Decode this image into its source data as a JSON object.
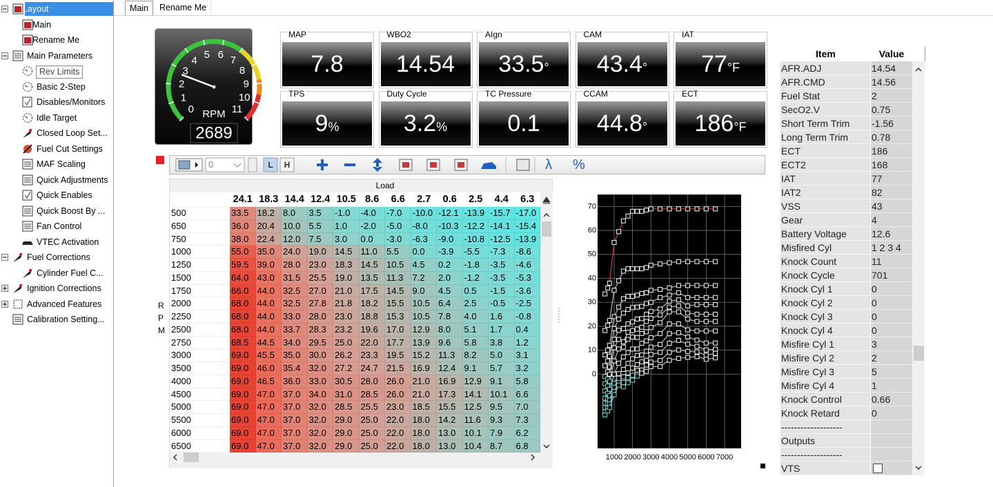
{
  "sidebar": [
    "Layout",
    "Main",
    "Rename Me",
    "Main Parameters",
    "Rev Limits",
    "Basic 2-Step",
    "Disables/Monitors",
    "Idle Target",
    "Closed Loop Set...",
    "Fuel Cut Settings",
    "MAF Scaling",
    "Quick Adjustments",
    "Quick Enables",
    "Quick Boost By ...",
    "Fan Control",
    "VTEC Activation",
    "Fuel Corrections",
    "Cylinder Fuel C...",
    "Ignition Corrections",
    "Advanced Features",
    "Calibration Setting..."
  ],
  "tabs": [
    "Main",
    "Rename Me"
  ],
  "rpm_gauge": {
    "label": "RPM",
    "ticks": [
      0,
      1,
      2,
      3,
      4,
      5,
      6,
      7,
      8,
      9,
      10,
      11
    ],
    "value": "2689"
  },
  "gauges": [
    {
      "label": "MAP",
      "value": "7.8"
    },
    {
      "label": "WBO2",
      "value": "14.54"
    },
    {
      "label": "AIgn",
      "value": "33.5",
      "unit": "°"
    },
    {
      "label": "CAM",
      "value": "43.4",
      "unit": "°"
    },
    {
      "label": "IAT",
      "value": "77",
      "unit": "°F"
    },
    {
      "label": "TPS",
      "value": "9",
      "unit": "%"
    },
    {
      "label": "Duty Cycle",
      "value": "3.2",
      "unit": "%"
    },
    {
      "label": "TC Pressure",
      "value": "0.1"
    },
    {
      "label": "CCAM",
      "value": "44.8",
      "unit": "°"
    },
    {
      "label": "ECT",
      "value": "186",
      "unit": "°F"
    }
  ],
  "toolbar": {
    "selector": "0",
    "buttons": [
      "L",
      "H"
    ],
    "symbols": [
      "λ",
      "%"
    ]
  },
  "table": {
    "axis_label": "Load",
    "row_axis_label": "RPM",
    "columns": [
      "24.1",
      "18.3",
      "14.4",
      "12.4",
      "10.5",
      "8.6",
      "6.6",
      "2.7",
      "0.6",
      "2.5",
      "4.4",
      "6.3"
    ],
    "rows": [
      {
        "rpm": "500",
        "cells": [
          "33.5",
          "18.2",
          "8.0",
          "3.5",
          "-1.0",
          "-4.0",
          "-7.0",
          "-10.0",
          "-12.1",
          "-13.9",
          "-15.7",
          "-17.0"
        ]
      },
      {
        "rpm": "650",
        "cells": [
          "36.0",
          "20.4",
          "10.0",
          "5.5",
          "1.0",
          "-2.0",
          "-5.0",
          "-8.0",
          "-10.3",
          "-12.2",
          "-14.1",
          "-15.4"
        ]
      },
      {
        "rpm": "750",
        "cells": [
          "38.0",
          "22.4",
          "12.0",
          "7.5",
          "3.0",
          "0.0",
          "-3.0",
          "-6.3",
          "-9.0",
          "-10.8",
          "-12.5",
          "-13.9"
        ]
      },
      {
        "rpm": "1000",
        "cells": [
          "55.0",
          "35.0",
          "24.0",
          "19.0",
          "14.5",
          "11.0",
          "5.5",
          "0.0",
          "-3.9",
          "-5.5",
          "-7.3",
          "-8.6"
        ]
      },
      {
        "rpm": "1250",
        "cells": [
          "59.5",
          "39.0",
          "28.0",
          "23.0",
          "18.3",
          "14.5",
          "10.5",
          "4.5",
          "0.2",
          "-1.8",
          "-3.5",
          "-4.6"
        ]
      },
      {
        "rpm": "1500",
        "cells": [
          "64.0",
          "43.0",
          "31.5",
          "25.5",
          "19.0",
          "13.5",
          "11.3",
          "7.2",
          "2.0",
          "-1.2",
          "-3.5",
          "-5.3"
        ]
      },
      {
        "rpm": "1750",
        "cells": [
          "66.0",
          "44.0",
          "32.5",
          "27.0",
          "21.0",
          "17.5",
          "14.5",
          "9.0",
          "4.5",
          "0.5",
          "-1.5",
          "-3.6"
        ]
      },
      {
        "rpm": "2000",
        "cells": [
          "68.0",
          "44.0",
          "32.5",
          "27.8",
          "21.8",
          "18.2",
          "15.5",
          "10.5",
          "6.4",
          "2.5",
          "-0.5",
          "-2.5"
        ]
      },
      {
        "rpm": "2250",
        "cells": [
          "68.0",
          "44.0",
          "33.0",
          "28.0",
          "23.0",
          "18.8",
          "15.3",
          "10.5",
          "7.8",
          "4.0",
          "1.6",
          "-0.8"
        ]
      },
      {
        "rpm": "2500",
        "cells": [
          "68.0",
          "44.0",
          "33.7",
          "28.3",
          "23.2",
          "19.6",
          "17.0",
          "12.9",
          "8.0",
          "5.1",
          "1.7",
          "0.4"
        ]
      },
      {
        "rpm": "2750",
        "cells": [
          "68.5",
          "44.5",
          "34.0",
          "29.5",
          "25.0",
          "22.0",
          "17.7",
          "13.9",
          "9.6",
          "5.8",
          "3.8",
          "1.2"
        ]
      },
      {
        "rpm": "3000",
        "cells": [
          "69.0",
          "45.5",
          "35.0",
          "30.0",
          "26.2",
          "23.3",
          "19.5",
          "15.2",
          "11.3",
          "8.2",
          "5.0",
          "3.1"
        ]
      },
      {
        "rpm": "3500",
        "cells": [
          "69.0",
          "46.0",
          "35.4",
          "32.0",
          "27.2",
          "24.7",
          "21.5",
          "16.9",
          "12.4",
          "9.1",
          "5.7",
          "3.2"
        ]
      },
      {
        "rpm": "4000",
        "cells": [
          "69.0",
          "46.5",
          "36.0",
          "33.0",
          "30.5",
          "28.0",
          "26.0",
          "21.0",
          "16.9",
          "12.9",
          "9.1",
          "5.8"
        ]
      },
      {
        "rpm": "4500",
        "cells": [
          "69.0",
          "47.0",
          "37.0",
          "34.0",
          "31.0",
          "28.5",
          "26.0",
          "21.0",
          "17.3",
          "14.1",
          "10.1",
          "6.6"
        ]
      },
      {
        "rpm": "5000",
        "cells": [
          "69.0",
          "47.0",
          "37.0",
          "32.0",
          "28.5",
          "25.5",
          "23.0",
          "18.5",
          "15.5",
          "12.5",
          "9.5",
          "7.0"
        ]
      },
      {
        "rpm": "5500",
        "cells": [
          "69.0",
          "47.0",
          "37.0",
          "32.0",
          "29.0",
          "25.0",
          "22.0",
          "18.0",
          "14.2",
          "11.6",
          "9.3",
          "7.3"
        ]
      },
      {
        "rpm": "6000",
        "cells": [
          "69.0",
          "47.0",
          "37.0",
          "32.0",
          "29.0",
          "25.0",
          "22.0",
          "18.0",
          "13.0",
          "10.1",
          "7.9",
          "6.2"
        ]
      },
      {
        "rpm": "6500",
        "cells": [
          "69.0",
          "47.0",
          "37.0",
          "32.0",
          "29.0",
          "25.0",
          "22.0",
          "18.0",
          "13.0",
          "10.4",
          "8.7",
          "6.8"
        ]
      }
    ]
  },
  "graph": {
    "xlim": [
      100,
      7900
    ],
    "ylim": [
      -31,
      75
    ],
    "xticks": [
      1000,
      2000,
      3000,
      4000,
      5000,
      6000,
      7000
    ],
    "yticks": [
      0,
      10,
      20,
      30,
      40,
      50,
      60,
      70
    ]
  },
  "live_table": {
    "headers": [
      "Item",
      "Value"
    ],
    "rows": [
      [
        "AFR.ADJ",
        "14.54"
      ],
      [
        "AFR.CMD",
        "14.56"
      ],
      [
        "Fuel Stat",
        "2"
      ],
      [
        "SecO2.V",
        "0.75"
      ],
      [
        "Short Term Trim",
        "-1.56"
      ],
      [
        "Long Term Trim",
        "0.78"
      ],
      [
        "ECT",
        "186"
      ],
      [
        "ECT2",
        "168"
      ],
      [
        "IAT",
        "77"
      ],
      [
        "IAT2",
        "82"
      ],
      [
        "VSS",
        "43"
      ],
      [
        "Gear",
        "4"
      ],
      [
        "Battery Voltage",
        "12.6"
      ],
      [
        "Misfired Cyl",
        "1 2 3 4"
      ],
      [
        "Knock Count",
        "11"
      ],
      [
        "Knock Cycle",
        "701"
      ],
      [
        "Knock Cyl 1",
        "0"
      ],
      [
        "Knock Cyl 2",
        "0"
      ],
      [
        "Knock Cyl 3",
        "0"
      ],
      [
        "Knock Cyl 4",
        "0"
      ],
      [
        "Misfire Cyl 1",
        "3"
      ],
      [
        "Misfire Cyl 2",
        "2"
      ],
      [
        "Misfire Cyl 3",
        "5"
      ],
      [
        "Misfire Cyl 4",
        "1"
      ],
      [
        "Knock Control",
        "0.66"
      ],
      [
        "Knock Retard",
        "0"
      ],
      [
        "-------------------"
      ],
      [
        "Outputs"
      ],
      [
        "-------------------"
      ],
      [
        "VTS"
      ]
    ]
  }
}
